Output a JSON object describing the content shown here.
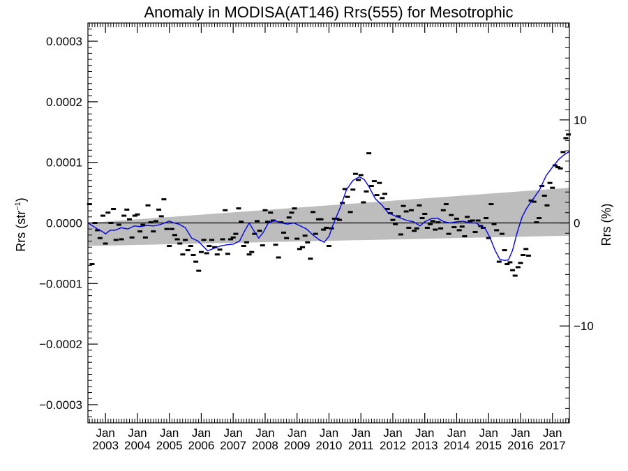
{
  "chart_data": {
    "type": "scatter",
    "title": "Anomaly in MODISA(AT146) Rrs(555) for Mesotrophic",
    "ylabel": "Rrs (str",
    "ylabel_sup": "−1",
    "ylabel_close": ")",
    "y2label": "Rrs (%)",
    "ylim": [
      -0.00033,
      0.00033
    ],
    "y2lim": [
      -19.4,
      19.4
    ],
    "xlim": [
      2002.45,
      2017.53
    ],
    "grid": false,
    "legend": "none",
    "yticks": [
      {
        "v": 0.0003,
        "label": "0.0003"
      },
      {
        "v": 0.0002,
        "label": "0.0002"
      },
      {
        "v": 0.0001,
        "label": "0.0001"
      },
      {
        "v": 0.0,
        "label": "0.0000"
      },
      {
        "v": -0.0001,
        "label": "−0.0001"
      },
      {
        "v": -0.0002,
        "label": "−0.0002"
      },
      {
        "v": -0.0003,
        "label": "−0.0003"
      }
    ],
    "y2ticks": [
      {
        "v": 10,
        "label": "10"
      },
      {
        "v": 0,
        "label": "0"
      },
      {
        "v": -10,
        "label": "−10"
      }
    ],
    "xticks": [
      {
        "v": 2003.0,
        "month": "Jan",
        "year": "2003"
      },
      {
        "v": 2004.0,
        "month": "Jan",
        "year": "2004"
      },
      {
        "v": 2005.0,
        "month": "Jan",
        "year": "2005"
      },
      {
        "v": 2006.0,
        "month": "Jan",
        "year": "2006"
      },
      {
        "v": 2007.0,
        "month": "Jan",
        "year": "2007"
      },
      {
        "v": 2008.0,
        "month": "Jan",
        "year": "2008"
      },
      {
        "v": 2009.0,
        "month": "Jan",
        "year": "2009"
      },
      {
        "v": 2010.0,
        "month": "Jan",
        "year": "2010"
      },
      {
        "v": 2011.0,
        "month": "Jan",
        "year": "2011"
      },
      {
        "v": 2012.0,
        "month": "Jan",
        "year": "2012"
      },
      {
        "v": 2013.0,
        "month": "Jan",
        "year": "2013"
      },
      {
        "v": 2014.0,
        "month": "Jan",
        "year": "2014"
      },
      {
        "v": 2015.0,
        "month": "Jan",
        "year": "2015"
      },
      {
        "v": 2016.0,
        "month": "Jan",
        "year": "2016"
      },
      {
        "v": 2017.0,
        "month": "Jan",
        "year": "2017"
      }
    ],
    "confidence_band": {
      "x": [
        2002.45,
        2017.53
      ],
      "upper": [
        0.0,
        5.8e-05
      ],
      "lower": [
        -3.8e-05,
        -2.1e-05
      ]
    },
    "zero_line": 0.0,
    "monthly_anomalies": {
      "x": [
        2002.5,
        2002.58,
        2002.67,
        2002.75,
        2002.83,
        2002.92,
        2003.0,
        2003.08,
        2003.17,
        2003.25,
        2003.33,
        2003.42,
        2003.5,
        2003.58,
        2003.67,
        2003.75,
        2003.83,
        2003.92,
        2004.0,
        2004.08,
        2004.17,
        2004.25,
        2004.33,
        2004.42,
        2004.5,
        2004.58,
        2004.67,
        2004.75,
        2004.83,
        2004.92,
        2005.0,
        2005.08,
        2005.17,
        2005.25,
        2005.33,
        2005.42,
        2005.5,
        2005.58,
        2005.67,
        2005.75,
        2005.83,
        2005.92,
        2006.0,
        2006.08,
        2006.17,
        2006.25,
        2006.33,
        2006.42,
        2006.5,
        2006.58,
        2006.67,
        2006.75,
        2006.83,
        2006.92,
        2007.0,
        2007.08,
        2007.17,
        2007.25,
        2007.33,
        2007.42,
        2007.5,
        2007.58,
        2007.67,
        2007.75,
        2007.83,
        2007.92,
        2008.0,
        2008.08,
        2008.17,
        2008.25,
        2008.33,
        2008.42,
        2008.5,
        2008.58,
        2008.67,
        2008.75,
        2008.83,
        2008.92,
        2009.0,
        2009.08,
        2009.17,
        2009.25,
        2009.33,
        2009.42,
        2009.5,
        2009.58,
        2009.67,
        2009.75,
        2009.83,
        2009.92,
        2010.0,
        2010.08,
        2010.17,
        2010.25,
        2010.33,
        2010.42,
        2010.5,
        2010.58,
        2010.67,
        2010.75,
        2010.83,
        2010.92,
        2011.0,
        2011.08,
        2011.17,
        2011.25,
        2011.33,
        2011.42,
        2011.5,
        2011.58,
        2011.67,
        2011.75,
        2011.83,
        2011.92,
        2012.0,
        2012.08,
        2012.17,
        2012.25,
        2012.33,
        2012.42,
        2012.5,
        2012.58,
        2012.67,
        2012.75,
        2012.83,
        2012.92,
        2013.0,
        2013.08,
        2013.17,
        2013.25,
        2013.33,
        2013.42,
        2013.5,
        2013.58,
        2013.67,
        2013.75,
        2013.83,
        2013.92,
        2014.0,
        2014.08,
        2014.17,
        2014.25,
        2014.33,
        2014.42,
        2014.5,
        2014.58,
        2014.67,
        2014.75,
        2014.83,
        2014.92,
        2015.0,
        2015.08,
        2015.17,
        2015.25,
        2015.33,
        2015.42,
        2015.5,
        2015.58,
        2015.67,
        2015.75,
        2015.83,
        2015.92,
        2016.0,
        2016.08,
        2016.17,
        2016.25,
        2016.33,
        2016.42,
        2016.5,
        2016.58,
        2016.67,
        2016.75,
        2016.83,
        2016.92,
        2017.0,
        2017.08,
        2017.17,
        2017.25,
        2017.33,
        2017.42,
        2017.5
      ],
      "y": [
        3.1e-05,
        -6.8e-05,
        0.0,
        -1.2e-05,
        -2.5e-05,
        1.2e-05,
        -3.4e-05,
        1.7e-05,
        0.0,
        2.3e-05,
        -2.8e-05,
        -3e-06,
        -2.7e-05,
        1.2e-05,
        2.2e-05,
        6e-06,
        -2.4e-05,
        1.2e-05,
        1.4e-05,
        -1.4e-05,
        -3e-06,
        -2.4e-05,
        2.9e-05,
        1e-06,
        -1.4e-05,
        3e-06,
        2.2e-05,
        1.1e-05,
        3.9e-05,
        -1e-05,
        -3.8e-05,
        -1e-05,
        -2e-05,
        -2.7e-05,
        -3.4e-05,
        -5.2e-05,
        -2.8e-05,
        -4.5e-05,
        -3.8e-05,
        -5.3e-05,
        -6.4e-05,
        -7.9e-05,
        -4.8e-05,
        -2.8e-05,
        -5e-05,
        -3.8e-05,
        -2.8e-05,
        -4e-05,
        -5.2e-05,
        -4.4e-05,
        -2.7e-05,
        2.1e-05,
        -5.1e-05,
        -2.7e-05,
        -2.4e-05,
        -1.8e-05,
        2.4e-05,
        2e-06,
        -3.8e-05,
        -3.2e-05,
        -5.2e-05,
        -4.8e-05,
        -1.8e-05,
        3e-06,
        -1.3e-05,
        -3.7e-05,
        2.1e-05,
        2e-06,
        1.7e-05,
        4e-06,
        -3.6e-05,
        -5.7e-05,
        1e-06,
        -1.6e-05,
        -2.5e-05,
        9e-06,
        1.7e-05,
        2.4e-05,
        -2.6e-05,
        -4.3e-05,
        -4e-05,
        -2.1e-05,
        -3.2e-05,
        -5.9e-05,
        1.8e-05,
        -1.8e-05,
        6e-06,
        6e-06,
        -1.1e-05,
        -8e-06,
        -3.8e-05,
        -9e-06,
        7e-06,
        7e-06,
        5e-06,
        3.3e-05,
        5.6e-05,
        4.3e-05,
        1.8e-05,
        5.5e-05,
        8.1e-05,
        7.1e-05,
        7.9e-05,
        3.4e-05,
        5.2e-05,
        0.000115,
        6.1e-05,
        6.9e-05,
        4.6e-05,
        6.6e-05,
        4.1e-05,
        4.8e-05,
        2.3e-05,
        1.6e-05,
        5e-06,
        -2e-06,
        1.1e-05,
        -1.9e-05,
        2.8e-05,
        1.9e-05,
        -8e-06,
        2.1e-05,
        -1.3e-05,
        -9e-06,
        2.9e-05,
        8e-06,
        1.5e-05,
        -8e-06,
        -2e-06,
        3e-06,
        -1.1e-05,
        1e-06,
        -9e-06,
        2.1e-05,
        3.1e-05,
        -1.8e-05,
        1.3e-05,
        -7e-06,
        7e-06,
        -1.2e-05,
        -6e-06,
        -2.2e-05,
        1e-05,
        3e-06,
        4e-06,
        -1.5e-05,
        4e-06,
        -5e-06,
        -8e-06,
        8e-06,
        -2.5e-05,
        3.1e-05,
        -2e-06,
        -1.2e-05,
        -6.4e-05,
        -1.8e-05,
        -4.5e-05,
        -6.8e-05,
        -6.5e-05,
        -7.8e-05,
        -8.7e-05,
        -7.3e-05,
        -6.6e-05,
        -5.3e-05,
        -4.3e-05,
        -5.4e-05,
        3.7e-05,
        3.5e-05,
        1e-06,
        8e-06,
        6.1e-05,
        4.5e-05,
        2.9e-05,
        6.6e-05,
        5.8e-05,
        9.5e-05,
        9.2e-05,
        9e-05,
        0.000117,
        0.00014,
        0.000146
      ]
    },
    "running_mean": {
      "x": [
        2002.45,
        2002.6,
        2002.75,
        2002.9,
        2003.0,
        2003.15,
        2003.3,
        2003.5,
        2003.7,
        2003.9,
        2004.1,
        2004.3,
        2004.5,
        2004.7,
        2004.85,
        2005.0,
        2005.15,
        2005.3,
        2005.5,
        2005.7,
        2005.9,
        2006.05,
        2006.2,
        2006.4,
        2006.6,
        2006.8,
        2007.0,
        2007.2,
        2007.35,
        2007.5,
        2007.65,
        2007.8,
        2007.95,
        2008.1,
        2008.3,
        2008.5,
        2008.7,
        2008.9,
        2009.1,
        2009.3,
        2009.5,
        2009.7,
        2009.85,
        2010.0,
        2010.15,
        2010.35,
        2010.55,
        2010.75,
        2010.95,
        2011.1,
        2011.25,
        2011.45,
        2011.65,
        2011.85,
        2012.05,
        2012.25,
        2012.45,
        2012.65,
        2012.85,
        2013.0,
        2013.2,
        2013.4,
        2013.6,
        2013.8,
        2014.0,
        2014.2,
        2014.4,
        2014.6,
        2014.75,
        2014.9,
        2015.05,
        2015.2,
        2015.35,
        2015.5,
        2015.62,
        2015.75,
        2015.9,
        2016.05,
        2016.2,
        2016.4,
        2016.6,
        2016.8,
        2017.0,
        2017.2,
        2017.35,
        2017.53
      ],
      "y": [
        0.0,
        -5e-06,
        -1e-05,
        -1.4e-05,
        -1.8e-05,
        -1.2e-05,
        -1.2e-05,
        -8e-06,
        -1e-05,
        -5e-06,
        -6e-06,
        -4e-06,
        -5e-06,
        -3e-06,
        0.0,
        3e-06,
        0.0,
        -2e-06,
        -8e-06,
        -2.5e-05,
        -3e-05,
        -3.8e-05,
        -4.6e-05,
        -4.2e-05,
        -3.8e-05,
        -3.6e-05,
        -3.5e-05,
        -3e-05,
        -1.4e-05,
        0.0,
        -1.3e-05,
        -2.5e-05,
        -1.5e-05,
        0.0,
        4e-06,
        0.0,
        -2e-06,
        0.0,
        -5e-06,
        -1e-05,
        -2e-05,
        -2.8e-05,
        -3.2e-05,
        -2.2e-05,
        0.0,
        2.5e-05,
        5.5e-05,
        7e-05,
        7.6e-05,
        7.2e-05,
        6e-05,
        4e-05,
        3e-05,
        1.7e-05,
        1.2e-05,
        8e-06,
        4e-06,
        2e-06,
        -5e-06,
        2e-06,
        7e-06,
        8e-06,
        2e-06,
        0.0,
        2e-06,
        3e-06,
        0.0,
        0.0,
        -5e-06,
        -1e-05,
        -2.5e-05,
        -4.5e-05,
        -6e-05,
        -6.2e-05,
        -6.1e-05,
        -4.5e-05,
        -1.5e-05,
        1e-05,
        2.5e-05,
        4e-05,
        5.5e-05,
        7.8e-05,
        9.2e-05,
        0.000105,
        0.000112,
        0.000118
      ]
    }
  }
}
